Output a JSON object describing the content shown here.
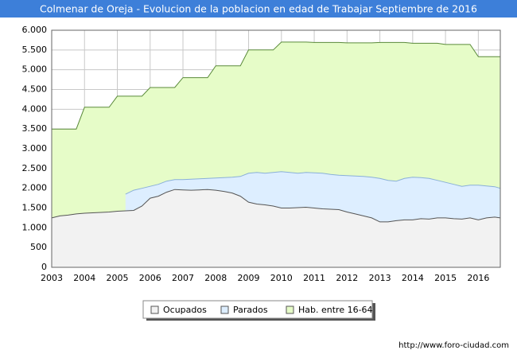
{
  "chart_data": {
    "type": "area",
    "title": "Colmenar de Oreja - Evolucion de la poblacion en edad de Trabajar Septiembre de 2016",
    "footer": "http://www.foro-ciudad.com",
    "x": [
      2003,
      2003.25,
      2003.5,
      2003.75,
      2004,
      2004.25,
      2004.5,
      2004.75,
      2005,
      2005.25,
      2005.5,
      2005.75,
      2006,
      2006.25,
      2006.5,
      2006.75,
      2007,
      2007.25,
      2007.5,
      2007.75,
      2008,
      2008.25,
      2008.5,
      2008.75,
      2009,
      2009.25,
      2009.5,
      2009.75,
      2010,
      2010.25,
      2010.5,
      2010.75,
      2011,
      2011.25,
      2011.5,
      2011.75,
      2012,
      2012.25,
      2012.5,
      2012.75,
      2013,
      2013.25,
      2013.5,
      2013.75,
      2014,
      2014.25,
      2014.5,
      2014.75,
      2015,
      2015.25,
      2015.5,
      2015.75,
      2016,
      2016.25,
      2016.5,
      2016.67
    ],
    "series": [
      {
        "name": "Ocupados",
        "color": "#f2f2f2",
        "values": [
          1250,
          1300,
          1320,
          1350,
          1370,
          1380,
          1390,
          1400,
          1420,
          1430,
          1440,
          1550,
          1750,
          1800,
          1900,
          1970,
          1960,
          1950,
          1960,
          1970,
          1950,
          1920,
          1880,
          1800,
          1650,
          1600,
          1580,
          1550,
          1500,
          1500,
          1510,
          1520,
          1500,
          1480,
          1470,
          1460,
          1400,
          1350,
          1300,
          1250,
          1150,
          1150,
          1180,
          1200,
          1200,
          1230,
          1220,
          1250,
          1250,
          1230,
          1220,
          1250,
          1200,
          1250,
          1270,
          1250
        ]
      },
      {
        "name": "Parados",
        "color": "#ddeeff",
        "values": [
          null,
          null,
          null,
          null,
          null,
          null,
          null,
          null,
          null,
          420,
          510,
          450,
          300,
          300,
          280,
          250,
          260,
          280,
          280,
          280,
          310,
          350,
          400,
          500,
          730,
          800,
          800,
          850,
          920,
          900,
          870,
          880,
          890,
          900,
          880,
          870,
          920,
          960,
          1000,
          1030,
          1100,
          1050,
          1000,
          1050,
          1080,
          1040,
          1030,
          950,
          900,
          870,
          830,
          830,
          880,
          810,
          770,
          750
        ]
      },
      {
        "name": "Hab. entre 16-64",
        "color": "#e6fcc8",
        "values": [
          3500,
          3500,
          3500,
          3500,
          4050,
          4050,
          4050,
          4050,
          4330,
          4330,
          4330,
          4330,
          4550,
          4550,
          4550,
          4550,
          4800,
          4800,
          4800,
          4800,
          5100,
          5100,
          5100,
          5100,
          5500,
          5500,
          5500,
          5500,
          5700,
          5700,
          5700,
          5700,
          5690,
          5690,
          5690,
          5690,
          5680,
          5680,
          5680,
          5680,
          5690,
          5690,
          5690,
          5690,
          5670,
          5670,
          5670,
          5670,
          5640,
          5640,
          5640,
          5640,
          5330,
          5330,
          5330,
          5330
        ]
      }
    ],
    "xlim": [
      2003,
      2016.67
    ],
    "xticks": [
      2003,
      2004,
      2005,
      2006,
      2007,
      2008,
      2009,
      2010,
      2011,
      2012,
      2013,
      2014,
      2015,
      2016
    ],
    "ylim": [
      0,
      6000
    ],
    "yticks": [
      0,
      500,
      {
        "value": 1000,
        "label": "1.000"
      },
      {
        "value": 1500,
        "label": "1.500"
      },
      {
        "value": 2000,
        "label": "2.000"
      },
      {
        "value": 2500,
        "label": "2.500"
      },
      {
        "value": 3000,
        "label": "3.000"
      },
      {
        "value": 3500,
        "label": "3.500"
      },
      {
        "value": 4000,
        "label": "4.000"
      },
      {
        "value": 4500,
        "label": "4.500"
      },
      {
        "value": 5000,
        "label": "5.000"
      },
      {
        "value": 5500,
        "label": "5.500"
      },
      {
        "value": 6000,
        "label": "6.000"
      }
    ],
    "grid": true
  }
}
